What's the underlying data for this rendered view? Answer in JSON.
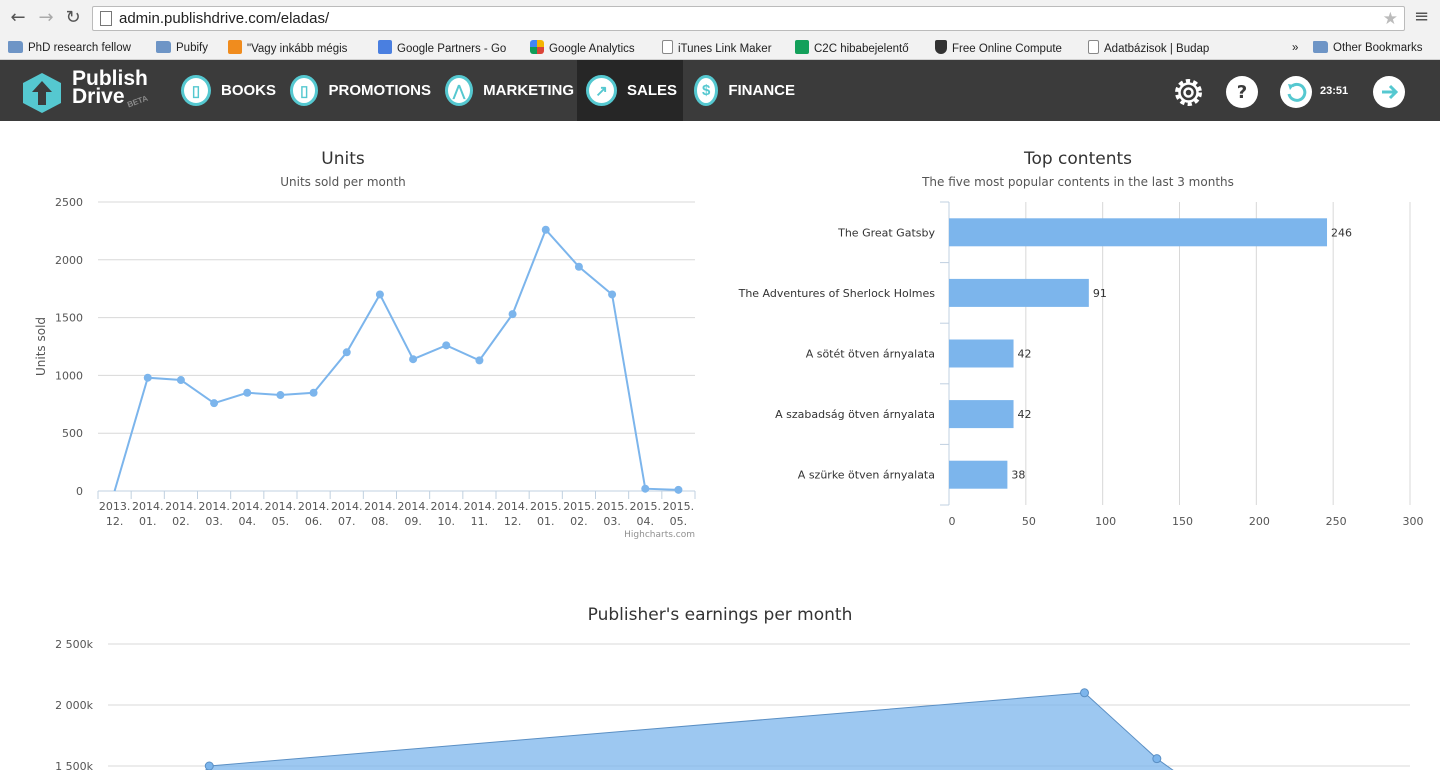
{
  "browser": {
    "url": "admin.publishdrive.com/eladas/",
    "bookmarks": [
      {
        "label": "PhD research fellow",
        "icon": "folder"
      },
      {
        "label": "Pubify",
        "icon": "folder"
      },
      {
        "label": "\"Vagy inkább mégis",
        "icon": "orange"
      },
      {
        "label": "Google Partners - Go",
        "icon": "google"
      },
      {
        "label": "Google Analytics",
        "icon": "ga"
      },
      {
        "label": "iTunes Link Maker",
        "icon": "page"
      },
      {
        "label": "C2C hibabejelentő",
        "icon": "green"
      },
      {
        "label": "Free Online Compute",
        "icon": "shield"
      },
      {
        "label": "Adatbázisok | Budap",
        "icon": "page"
      }
    ],
    "more_label": "»",
    "other_bookmarks": "Other Bookmarks"
  },
  "app": {
    "logo_line1": "Publish",
    "logo_line2": "Drive",
    "logo_beta": "BETA",
    "nav": [
      {
        "label": "BOOKS",
        "icon": "book-icon",
        "glyph": "▯"
      },
      {
        "label": "PROMOTIONS",
        "icon": "tag-icon",
        "glyph": "▯"
      },
      {
        "label": "MARKETING",
        "icon": "marketing-icon",
        "glyph": "⋀"
      },
      {
        "label": "SALES",
        "icon": "arrow-up-right-icon",
        "glyph": "↗",
        "active": true
      },
      {
        "label": "FINANCE",
        "icon": "dollar-icon",
        "glyph": "$"
      }
    ],
    "timer": "23:51",
    "accent": "#55c8d0"
  },
  "chart_data": [
    {
      "type": "line",
      "title": "Units",
      "subtitle": "Units sold per month",
      "ylabel": "Units sold",
      "ylim": [
        0,
        2500
      ],
      "yticks": [
        "0",
        "500",
        "1000",
        "1500",
        "2000",
        "2500"
      ],
      "categories": [
        [
          "2013.",
          "12."
        ],
        [
          "2014.",
          "01."
        ],
        [
          "2014.",
          "02."
        ],
        [
          "2014.",
          "03."
        ],
        [
          "2014.",
          "04."
        ],
        [
          "2014.",
          "05."
        ],
        [
          "2014.",
          "06."
        ],
        [
          "2014.",
          "07."
        ],
        [
          "2014.",
          "08."
        ],
        [
          "2014.",
          "09."
        ],
        [
          "2014.",
          "10."
        ],
        [
          "2014.",
          "11."
        ],
        [
          "2014.",
          "12."
        ],
        [
          "2015.",
          "01."
        ],
        [
          "2015.",
          "02."
        ],
        [
          "2015.",
          "03."
        ],
        [
          "2015.",
          "04."
        ],
        [
          "2015.",
          "05."
        ]
      ],
      "values": [
        0,
        980,
        960,
        760,
        850,
        830,
        850,
        1200,
        1700,
        1140,
        1260,
        1130,
        1530,
        2260,
        1940,
        1700,
        20,
        10
      ],
      "credit": "Highcharts.com",
      "color": "#7cb5ec"
    },
    {
      "type": "bar",
      "title": "Top contents",
      "subtitle": "The five most popular contents in the last 3 months",
      "categories": [
        "The Great Gatsby",
        "The Adventures of Sherlock Holmes",
        "A sötét ötven árnyalata",
        "A szabadság ötven árnyalata",
        "A szürke ötven árnyalata"
      ],
      "values": [
        246,
        91,
        42,
        42,
        38
      ],
      "xlim": [
        0,
        300
      ],
      "xticks": [
        "0",
        "50",
        "100",
        "150",
        "200",
        "250",
        "300"
      ],
      "color": "#7cb5ec"
    },
    {
      "type": "area",
      "title": "Publisher's earnings per month",
      "yticks": [
        "1 500k",
        "2 000k",
        "2 500k"
      ],
      "ytick_values": [
        1500,
        2000,
        2500
      ],
      "points": [
        [
          0.9,
          1500
        ],
        [
          13.0,
          2100
        ],
        [
          14.0,
          1560
        ]
      ],
      "color": "#7cb5ec"
    }
  ]
}
